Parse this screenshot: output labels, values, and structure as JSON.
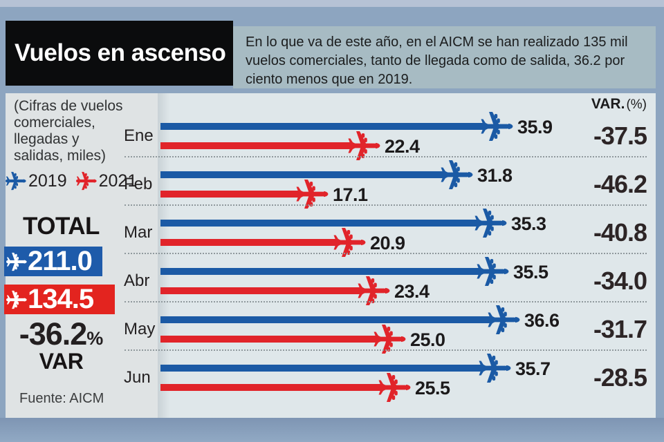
{
  "colors": {
    "blue_2019": "#1b5aa5",
    "red_2021": "#e1242a",
    "frame": "#8da5c0",
    "panel": "#dfe7ea",
    "title_bg": "#0b0c0d",
    "description_bg": "#a7bbc3"
  },
  "header": {
    "title": "Vuelos en ascenso",
    "description": "En lo que va de este año, en el AICM se han realizado 135 mil vuelos comerciales, tanto de llegada como de salida, 36.2 por ciento menos que en 2019."
  },
  "sidebar": {
    "note": "(Cifras de vuelos comerciales, llegadas y salidas, miles)",
    "legend": [
      {
        "label": "2019",
        "color": "#1b5aa5"
      },
      {
        "label": "2021",
        "color": "#e1242a"
      }
    ],
    "total": {
      "label": "TOTAL",
      "value_2019": "211.0",
      "value_2021": "134.5",
      "var_value": "-36.2",
      "var_pct": "%",
      "var_label": "VAR"
    },
    "source": "Fuente: AICM"
  },
  "chart_data": {
    "type": "bar",
    "orientation": "horizontal",
    "title": "Vuelos en ascenso",
    "categories": [
      "Ene",
      "Feb",
      "Mar",
      "Abr",
      "May",
      "Jun"
    ],
    "series": [
      {
        "name": "2019",
        "color": "#1b5aa5",
        "values": [
          35.9,
          31.8,
          35.3,
          35.5,
          36.6,
          35.7
        ]
      },
      {
        "name": "2021",
        "color": "#e1242a",
        "values": [
          22.4,
          17.1,
          20.9,
          23.4,
          25.0,
          25.5
        ]
      }
    ],
    "var_column": {
      "title_bold": "VAR.",
      "title_rest": "(%)",
      "values": [
        -37.5,
        -46.2,
        -40.8,
        -34.0,
        -31.7,
        -28.5
      ]
    },
    "xlim": [
      0,
      40
    ],
    "value_format": "one-decimal",
    "legend_position": "left-sidebar",
    "grid": "dotted-row-separators"
  }
}
